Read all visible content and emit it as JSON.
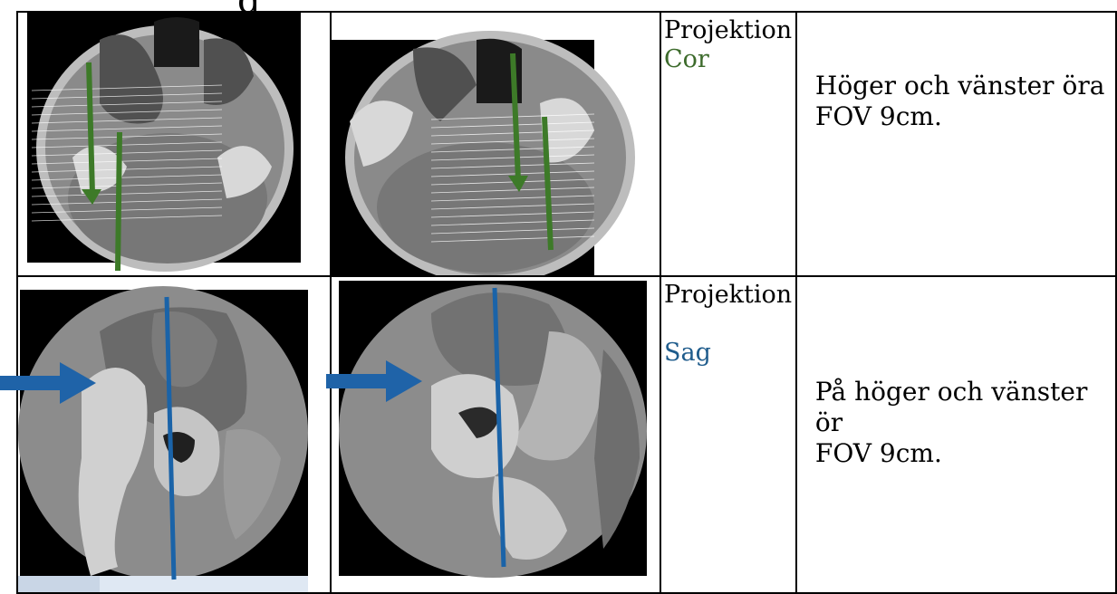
{
  "page": {
    "heading_fragment": "g"
  },
  "rows": [
    {
      "image_left": "ct-axial-planning-right",
      "image_right": "ct-axial-planning-left",
      "projection_label": "Projektion",
      "projection_name": "Cor",
      "projection_color": "#3d6b2c",
      "description_line1": "Höger och vänster öra",
      "description_line2": "FOV 9cm."
    },
    {
      "image_left": "ct-ear-cor-right",
      "image_right": "ct-ear-cor-left",
      "projection_label": "Projektion",
      "projection_name": "Sag",
      "projection_color": "#1f5c8c",
      "description_line1": "På höger och vänster ör",
      "description_line2": "FOV 9cm."
    }
  ],
  "colors": {
    "green_arrow": "#3d7a28",
    "blue_line": "#1a63a8"
  }
}
